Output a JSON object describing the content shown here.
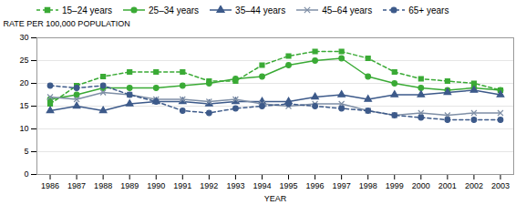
{
  "chart_data": {
    "type": "line",
    "xlabel": "YEAR",
    "ylabel": "RATE PER 100,000 POPULATION",
    "x": [
      1986,
      1987,
      1988,
      1989,
      1990,
      1991,
      1992,
      1993,
      1994,
      1995,
      1996,
      1997,
      1998,
      1999,
      2000,
      2001,
      2002,
      2003
    ],
    "series": [
      {
        "name": "15–24 years",
        "color": "#3aaa35",
        "marker": "square",
        "line_style": "dashed",
        "values": [
          15.5,
          19.5,
          21.5,
          22.5,
          22.5,
          22.5,
          20.5,
          20.5,
          24.0,
          26.0,
          27.0,
          27.0,
          25.5,
          22.5,
          21.0,
          20.5,
          20.0,
          18.5
        ]
      },
      {
        "name": "25–34 years",
        "color": "#3aaa35",
        "marker": "circle",
        "line_style": "solid",
        "values": [
          16.5,
          17.5,
          19.0,
          19.0,
          19.0,
          19.5,
          20.0,
          21.0,
          21.5,
          24.0,
          25.0,
          25.5,
          21.5,
          20.0,
          19.0,
          18.5,
          19.0,
          18.5
        ]
      },
      {
        "name": "35–44 years",
        "color": "#3d5a8a",
        "marker": "triangle",
        "line_style": "solid",
        "values": [
          14.0,
          15.0,
          14.0,
          15.5,
          16.0,
          16.0,
          15.5,
          16.0,
          16.0,
          16.0,
          17.0,
          17.5,
          16.5,
          17.5,
          17.5,
          18.0,
          18.5,
          17.5
        ]
      },
      {
        "name": "45–64 years",
        "color": "#7f8fa6",
        "marker": "x",
        "line_style": "solid",
        "values": [
          17.0,
          16.5,
          18.0,
          17.5,
          16.5,
          16.5,
          16.0,
          16.5,
          15.5,
          15.0,
          15.5,
          15.5,
          14.0,
          13.0,
          13.5,
          13.0,
          13.5,
          13.5
        ]
      },
      {
        "name": "65+ years",
        "color": "#3d5a8a",
        "marker": "circle",
        "line_style": "dashed",
        "values": [
          19.5,
          19.0,
          19.5,
          17.5,
          16.0,
          14.0,
          13.5,
          14.5,
          15.0,
          15.5,
          15.0,
          14.5,
          14.0,
          13.0,
          12.5,
          12.0,
          12.0,
          12.0
        ]
      }
    ],
    "xlim": [
      1985.5,
      2003.5
    ],
    "xticks": [
      1986,
      1987,
      1988,
      1989,
      1990,
      1991,
      1992,
      1993,
      1994,
      1995,
      1996,
      1997,
      1998,
      1999,
      2000,
      2001,
      2002,
      2003
    ],
    "ylim": [
      0,
      30
    ],
    "yticks": [
      0,
      5,
      10,
      15,
      20,
      25,
      30
    ],
    "grid": true,
    "legend": "upper left"
  }
}
